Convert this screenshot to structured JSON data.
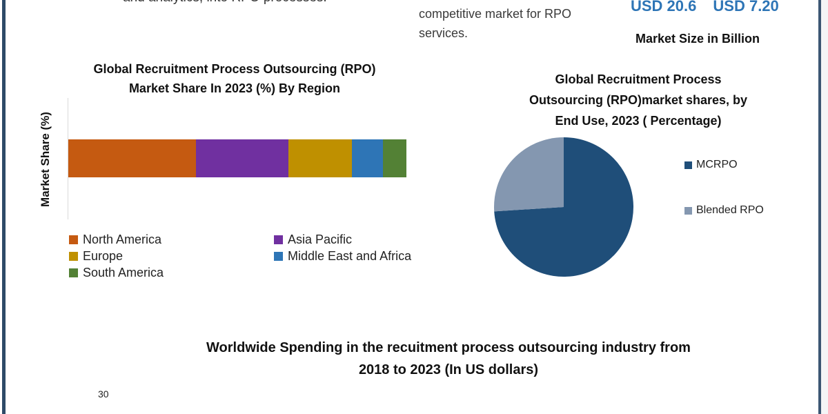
{
  "header": {
    "left_text": "and analytics, into RPO processes.",
    "mid_text": "competitive market for RPO services.",
    "usd_values": [
      "USD 20.6",
      "USD 7.20"
    ],
    "market_size_label": "Market Size in Billion"
  },
  "colors": {
    "border": "#2e4a68",
    "usd_accent": "#2e75b6"
  },
  "chart_data": [
    {
      "type": "bar",
      "orientation": "horizontal-stacked",
      "title": "Global Recruitment Process Outsourcing (RPO) Market Share In 2023 (%) By Region",
      "title_lines": [
        "Global Recruitment Process Outsourcing (RPO)",
        "Market Share In 2023 (%) By Region"
      ],
      "xlabel": "",
      "ylabel": "Market Share (%)",
      "categories": [
        "2023"
      ],
      "series": [
        {
          "name": "North America",
          "values": [
            37.8
          ],
          "color": "#c55a11"
        },
        {
          "name": "Asia Pacific",
          "values": [
            27.3
          ],
          "color": "#7030a0"
        },
        {
          "name": "Europe",
          "values": [
            18.8
          ],
          "color": "#bf9000"
        },
        {
          "name": "Middle East and Africa",
          "values": [
            9.2
          ],
          "color": "#2e75b6"
        },
        {
          "name": "South America",
          "values": [
            6.9
          ],
          "color": "#538135"
        }
      ],
      "legend_position": "bottom",
      "grid": false
    },
    {
      "type": "pie",
      "title": "Global Recruitment Process Outsourcing (RPO)market shares, by End Use, 2023 ( Percentage)",
      "title_lines": [
        "Global Recruitment Process",
        "Outsourcing (RPO)market shares, by",
        "End Use, 2023 ( Percentage)"
      ],
      "categories": [
        "MCRPO",
        "Blended RPO"
      ],
      "values": [
        74,
        26
      ],
      "colors": [
        "#1f4e79",
        "#8497b0"
      ],
      "legend_position": "right"
    },
    {
      "type": "bar",
      "title": "Worldwide Spending in the recuitment process outsourcing industry from 2018 to 2023 (In US dollars)",
      "title_lines": [
        "Worldwide Spending in the recuitment process outsourcing industry from",
        "2018 to 2023 (In US dollars)"
      ],
      "visible_y_ticks": [
        "30"
      ]
    }
  ]
}
